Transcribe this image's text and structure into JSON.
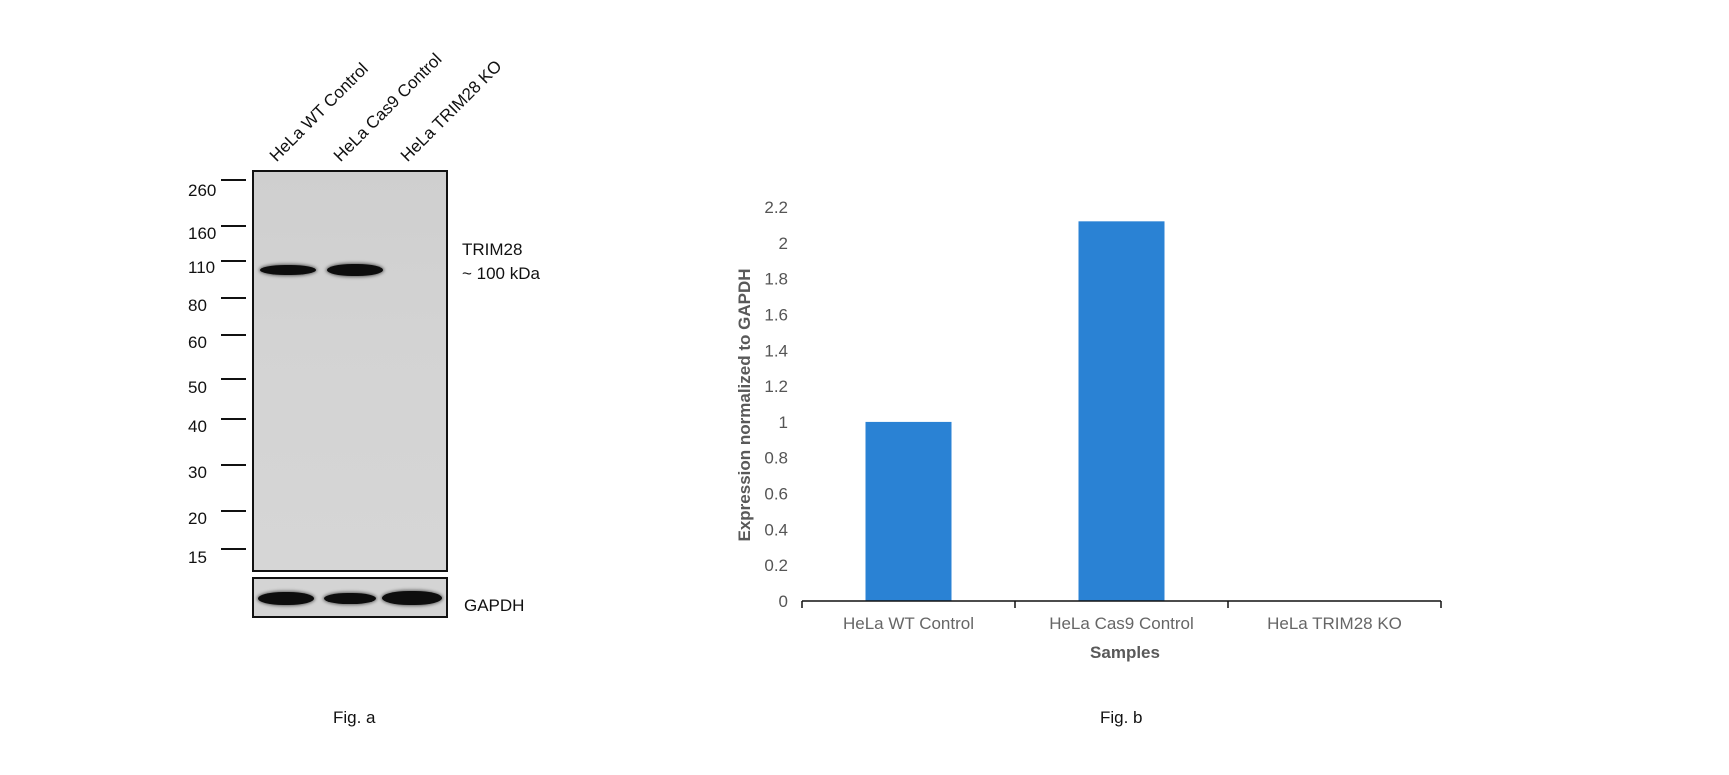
{
  "fig_a": {
    "lanes": [
      "HeLa WT Control",
      "HeLa Cas9 Control",
      "HeLa TRIM28 KO"
    ],
    "mw_markers": [
      "260",
      "160",
      "110",
      "80",
      "60",
      "50",
      "40",
      "30",
      "20",
      "15"
    ],
    "target_label": "TRIM28",
    "target_size": "~ 100 kDa",
    "loading_control": "GAPDH",
    "caption": "Fig. a"
  },
  "chart_data": {
    "type": "bar",
    "categories": [
      "HeLa WT Control",
      "HeLa Cas9 Control",
      "HeLa TRIM28 KO"
    ],
    "values": [
      1.0,
      2.12,
      0
    ],
    "xlabel": "Samples",
    "ylabel": "Expression normalized to GAPDH",
    "ylim": [
      0,
      2.2
    ],
    "yticks": [
      "0",
      "0.2",
      "0.4",
      "0.6",
      "0.8",
      "1",
      "1.2",
      "1.4",
      "1.6",
      "1.8",
      "2",
      "2.2"
    ],
    "grid": false,
    "legend": false,
    "bar_color": "#2a82d4",
    "caption": "Fig. b"
  }
}
